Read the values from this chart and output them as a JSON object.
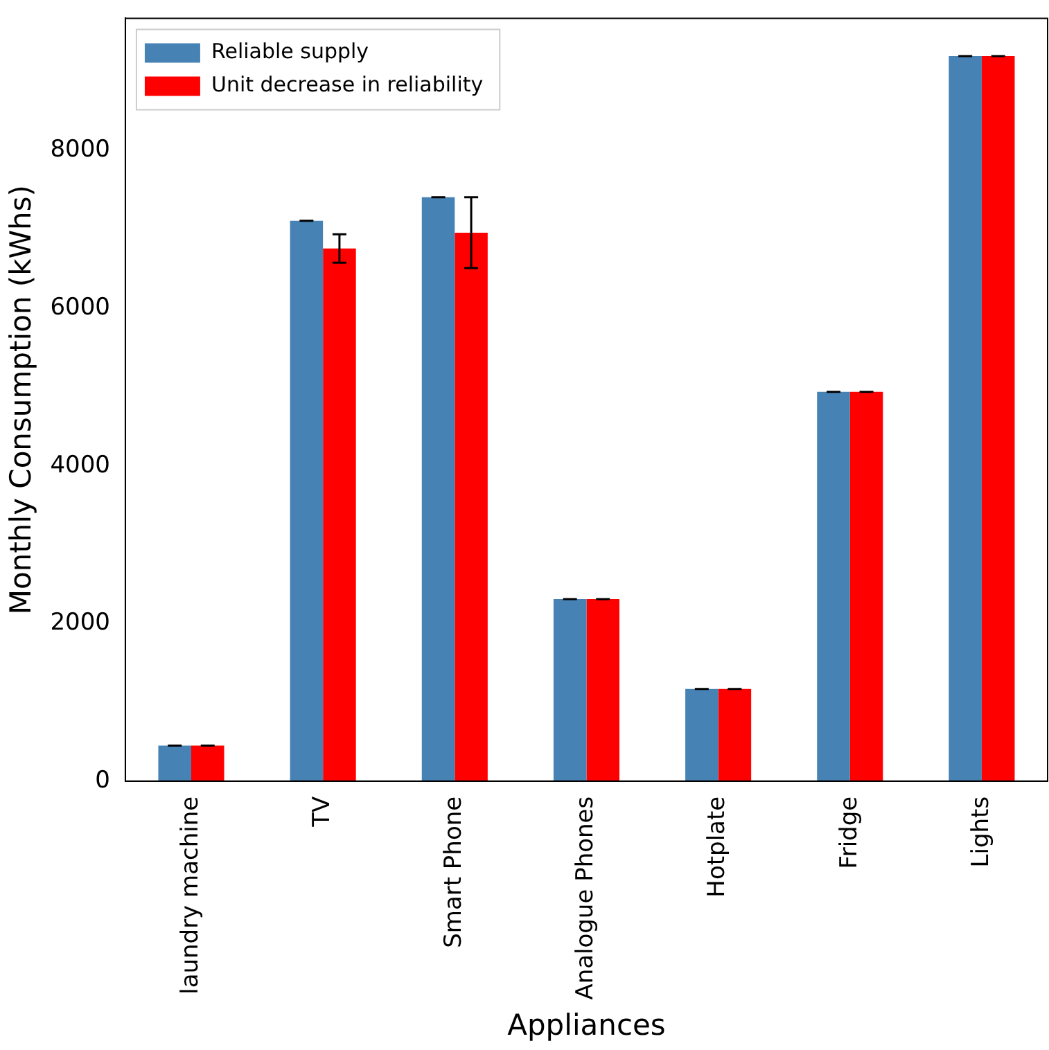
{
  "chart_data": {
    "type": "bar",
    "xlabel": "Appliances",
    "ylabel": "Monthly Consumption (kWhs)",
    "categories": [
      "laundry machine",
      "TV",
      "Smart Phone",
      "Analogue Phones",
      "Hotplate",
      "Fridge",
      "Lights"
    ],
    "series": [
      {
        "name": "Reliable supply",
        "color": "#4682b4",
        "values": [
          450,
          7110,
          7410,
          2310,
          1170,
          4940,
          9200
        ],
        "errors": [
          0,
          0,
          0,
          0,
          0,
          0,
          0
        ]
      },
      {
        "name": "Unit decrease in reliability",
        "color": "#ff0000",
        "values": [
          450,
          6760,
          6960,
          2310,
          1170,
          4940,
          9200
        ],
        "errors": [
          0,
          180,
          450,
          0,
          0,
          0,
          0
        ]
      }
    ],
    "ylim": [
      0,
      9680
    ],
    "yticks": [
      0,
      2000,
      4000,
      6000,
      8000
    ],
    "grid": false,
    "legend": "top left"
  }
}
